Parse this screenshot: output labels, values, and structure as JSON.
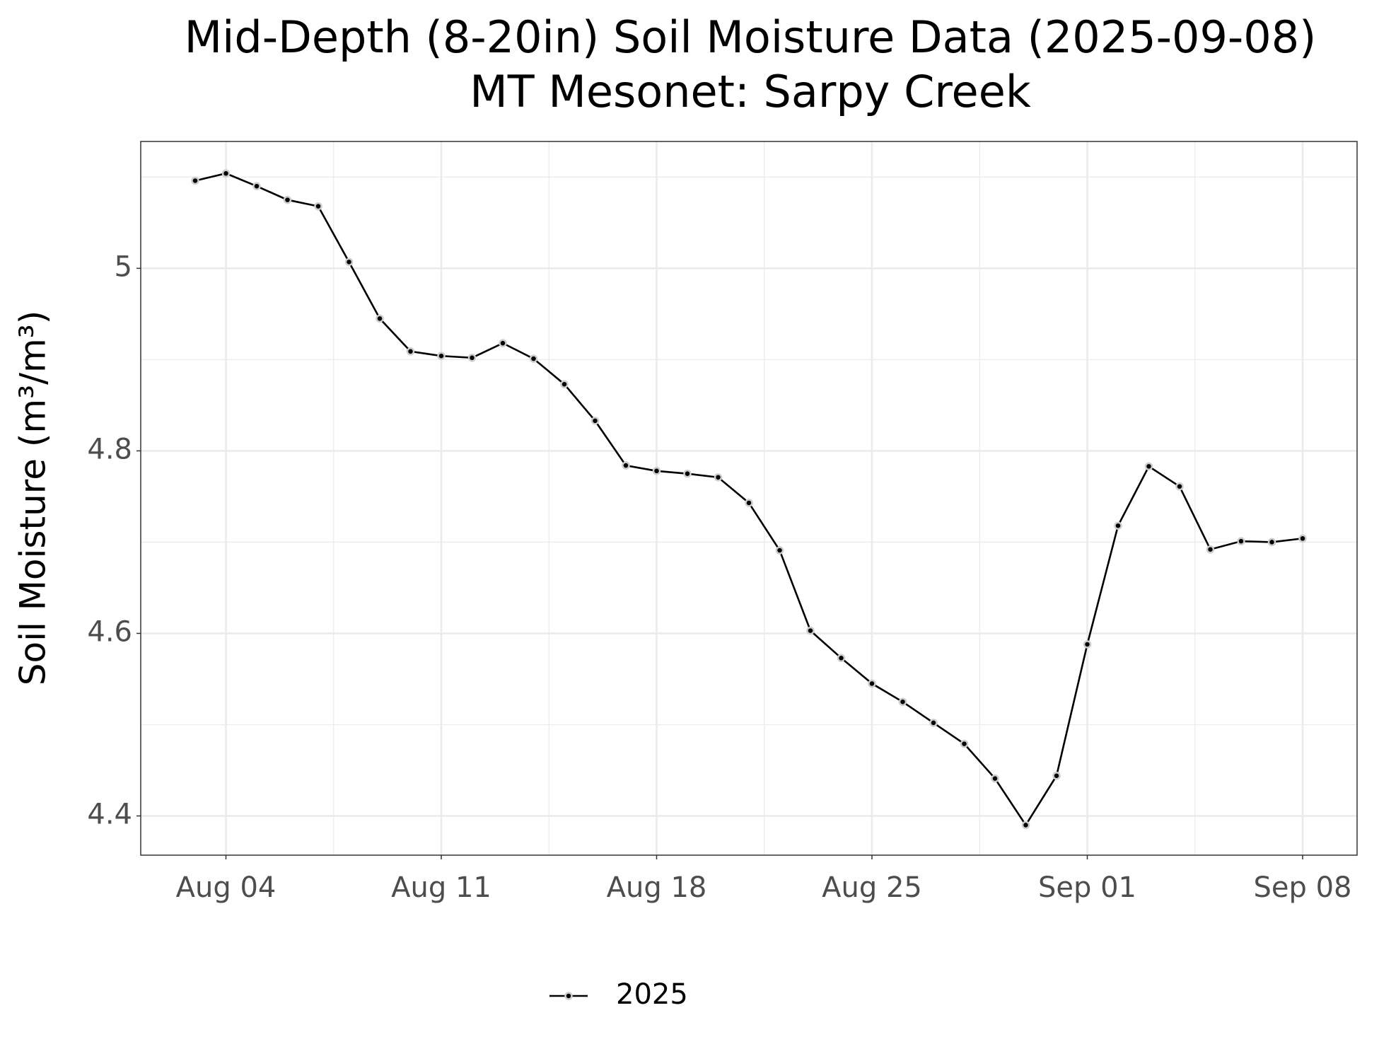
{
  "chart_data": {
    "type": "line",
    "title": "Mid-Depth (8-20in) Soil Moisture Data (2025-09-08)",
    "subtitle": "MT Mesonet: Sarpy Creek",
    "y_label": "Soil Moisture (m³/m³)",
    "categories": [
      null,
      "Aug 04",
      null,
      null,
      null,
      null,
      null,
      null,
      "Aug 11",
      null,
      null,
      null,
      null,
      null,
      null,
      "Aug 18",
      null,
      null,
      null,
      null,
      null,
      null,
      "Aug 25",
      null,
      null,
      null,
      null,
      null,
      null,
      "Sep 01",
      null,
      null,
      null,
      null,
      null,
      null,
      "Sep 08"
    ],
    "series": [
      {
        "name": "2025",
        "color": "#000000",
        "values": [
          5.096,
          5.104,
          5.09,
          5.075,
          5.068,
          5.007,
          4.945,
          4.909,
          4.904,
          4.902,
          4.918,
          4.901,
          4.873,
          4.833,
          4.784,
          4.778,
          4.775,
          4.771,
          4.743,
          4.691,
          4.603,
          4.573,
          4.545,
          4.525,
          4.502,
          4.479,
          4.441,
          4.39,
          4.444,
          4.588,
          4.718,
          4.783,
          4.761,
          4.692,
          4.701,
          4.7,
          4.704
        ]
      }
    ],
    "ylim": [
      4.357,
      5.139
    ],
    "yticks": [
      4.4,
      4.6,
      4.8,
      5.0
    ],
    "grid": true,
    "legend": "bottom"
  }
}
